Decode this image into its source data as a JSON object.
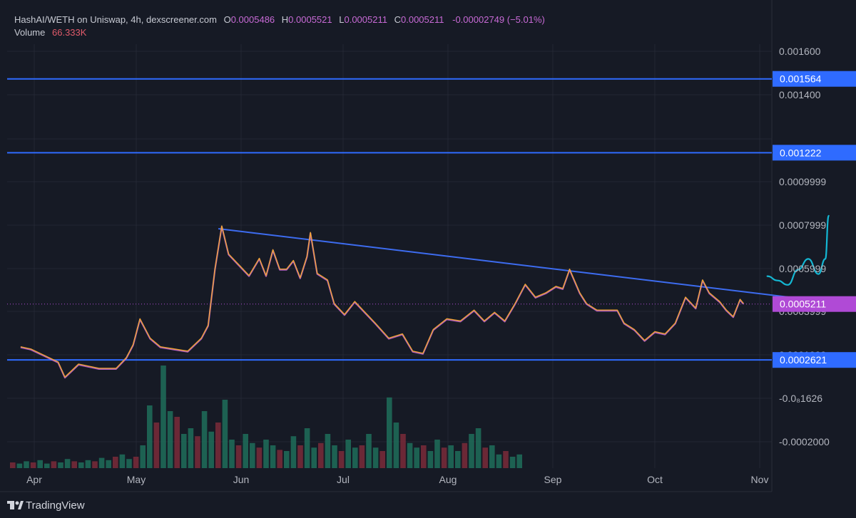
{
  "header": {
    "symbol": "HashAI/WETH on Uniswap, 4h, dexscreener.com",
    "o_label": "O",
    "o_value": "0.0005486",
    "h_label": "H",
    "h_value": "0.0005521",
    "l_label": "L",
    "l_value": "0.0005211",
    "c_label": "C",
    "c_value": "0.0005211",
    "change": "-0.00002749 (−5.01%)",
    "volume_label": "Volume",
    "volume_value": "66.333K"
  },
  "branding": {
    "name": "TradingView"
  },
  "colors": {
    "background": "#161a25",
    "grid": "#232733",
    "price_line": "#f3a72f",
    "price_line_alt": "#c86ad6",
    "horizontal_lines": "#2f6bff",
    "trendline": "#3d6cf0",
    "projection": "#14b8d4",
    "current_price_badge": "#b04ad6",
    "volume_up": "#1f6e5a",
    "volume_down": "#7a2b3a"
  },
  "chart_data": {
    "type": "line",
    "x_axis_labels": [
      "Apr",
      "May",
      "Jun",
      "Jul",
      "Aug",
      "Sep",
      "Oct",
      "Nov"
    ],
    "y_axis_labels": [
      "0.001600",
      "0.001400",
      "0.0009999",
      "0.0007999",
      "0.0005999",
      "0.0003999",
      "0.0001999",
      "-0.0₈1626",
      "-0.0002000"
    ],
    "price_series": {
      "name": "HashAI/WETH",
      "points": [
        [
          "2024-03-28",
          0.00032
        ],
        [
          "2024-03-31",
          0.00031
        ],
        [
          "2024-04-04",
          0.00028
        ],
        [
          "2024-04-08",
          0.00025
        ],
        [
          "2024-04-10",
          0.00018
        ],
        [
          "2024-04-14",
          0.00024
        ],
        [
          "2024-04-20",
          0.00022
        ],
        [
          "2024-04-25",
          0.00022
        ],
        [
          "2024-04-28",
          0.00027
        ],
        [
          "2024-04-30",
          0.00033
        ],
        [
          "2024-05-02",
          0.00045
        ],
        [
          "2024-05-05",
          0.00036
        ],
        [
          "2024-05-08",
          0.00032
        ],
        [
          "2024-05-12",
          0.00031
        ],
        [
          "2024-05-16",
          0.0003
        ],
        [
          "2024-05-20",
          0.00036
        ],
        [
          "2024-05-22",
          0.00042
        ],
        [
          "2024-05-24",
          0.00068
        ],
        [
          "2024-05-26",
          0.00088
        ],
        [
          "2024-05-28",
          0.00075
        ],
        [
          "2024-05-31",
          0.0007
        ],
        [
          "2024-06-03",
          0.00065
        ],
        [
          "2024-06-06",
          0.00073
        ],
        [
          "2024-06-08",
          0.00065
        ],
        [
          "2024-06-10",
          0.00077
        ],
        [
          "2024-06-12",
          0.00068
        ],
        [
          "2024-06-14",
          0.00068
        ],
        [
          "2024-06-16",
          0.00072
        ],
        [
          "2024-06-18",
          0.00064
        ],
        [
          "2024-06-20",
          0.00074
        ],
        [
          "2024-06-21",
          0.00085
        ],
        [
          "2024-06-23",
          0.00066
        ],
        [
          "2024-06-26",
          0.00063
        ],
        [
          "2024-06-28",
          0.00052
        ],
        [
          "2024-07-01",
          0.00047
        ],
        [
          "2024-07-04",
          0.00053
        ],
        [
          "2024-07-07",
          0.00048
        ],
        [
          "2024-07-10",
          0.00043
        ],
        [
          "2024-07-14",
          0.00036
        ],
        [
          "2024-07-18",
          0.00038
        ],
        [
          "2024-07-21",
          0.0003
        ],
        [
          "2024-07-24",
          0.00029
        ],
        [
          "2024-07-27",
          0.0004
        ],
        [
          "2024-07-31",
          0.00045
        ],
        [
          "2024-08-04",
          0.00044
        ],
        [
          "2024-08-08",
          0.00049
        ],
        [
          "2024-08-11",
          0.00044
        ],
        [
          "2024-08-14",
          0.00048
        ],
        [
          "2024-08-17",
          0.00044
        ],
        [
          "2024-08-20",
          0.00052
        ],
        [
          "2024-08-23",
          0.00061
        ],
        [
          "2024-08-26",
          0.00055
        ],
        [
          "2024-08-29",
          0.00057
        ],
        [
          "2024-09-01",
          0.0006
        ],
        [
          "2024-09-03",
          0.00059
        ],
        [
          "2024-09-05",
          0.00068
        ],
        [
          "2024-09-08",
          0.00057
        ],
        [
          "2024-09-10",
          0.00052
        ],
        [
          "2024-09-13",
          0.00049
        ],
        [
          "2024-09-16",
          0.00049
        ],
        [
          "2024-09-19",
          0.00049
        ],
        [
          "2024-09-21",
          0.00043
        ],
        [
          "2024-09-24",
          0.0004
        ],
        [
          "2024-09-27",
          0.00035
        ],
        [
          "2024-09-30",
          0.00039
        ],
        [
          "2024-10-03",
          0.00038
        ],
        [
          "2024-10-06",
          0.00043
        ],
        [
          "2024-10-09",
          0.00055
        ],
        [
          "2024-10-12",
          0.0005
        ],
        [
          "2024-10-14",
          0.00063
        ],
        [
          "2024-10-16",
          0.00057
        ],
        [
          "2024-10-19",
          0.00053
        ],
        [
          "2024-10-21",
          0.00049
        ],
        [
          "2024-10-23",
          0.00046
        ],
        [
          "2024-10-25",
          0.00054
        ],
        [
          "2024-10-26",
          0.000521
        ]
      ]
    },
    "horizontal_levels": [
      {
        "value": 0.001564,
        "label": "0.001564"
      },
      {
        "value": 0.001222,
        "label": "0.001222"
      },
      {
        "value": 0.0002621,
        "label": "0.0002621"
      }
    ],
    "current_price": {
      "value": 0.0005211,
      "label": "0.0005211"
    },
    "trendline": [
      [
        "2024-05-25",
        0.00087
      ],
      [
        "2024-12-01",
        0.00051
      ]
    ],
    "projection_path": [
      [
        "2024-11-02",
        0.00065
      ],
      [
        "2024-11-05",
        0.00063
      ],
      [
        "2024-11-08",
        0.00061
      ],
      [
        "2024-11-11",
        0.00068
      ],
      [
        "2024-11-14",
        0.00073
      ],
      [
        "2024-11-17",
        0.00066
      ],
      [
        "2024-11-19",
        0.00073
      ],
      [
        "2024-11-20",
        0.00093
      ]
    ],
    "volume_series": [
      0.05,
      0.04,
      0.06,
      0.05,
      0.07,
      0.04,
      0.06,
      0.05,
      0.08,
      0.06,
      0.05,
      0.07,
      0.06,
      0.09,
      0.07,
      0.1,
      0.12,
      0.08,
      0.1,
      0.2,
      0.55,
      0.4,
      0.9,
      0.5,
      0.45,
      0.3,
      0.35,
      0.28,
      0.5,
      0.32,
      0.4,
      0.6,
      0.25,
      0.2,
      0.3,
      0.22,
      0.18,
      0.25,
      0.2,
      0.16,
      0.15,
      0.28,
      0.2,
      0.35,
      0.18,
      0.22,
      0.3,
      0.2,
      0.15,
      0.25,
      0.18,
      0.2,
      0.3,
      0.18,
      0.15,
      0.62,
      0.4,
      0.3,
      0.22,
      0.18,
      0.2,
      0.15,
      0.25,
      0.18,
      0.2,
      0.15,
      0.22,
      0.3,
      0.35,
      0.18,
      0.2,
      0.12,
      0.15,
      0.1,
      0.12
    ]
  }
}
